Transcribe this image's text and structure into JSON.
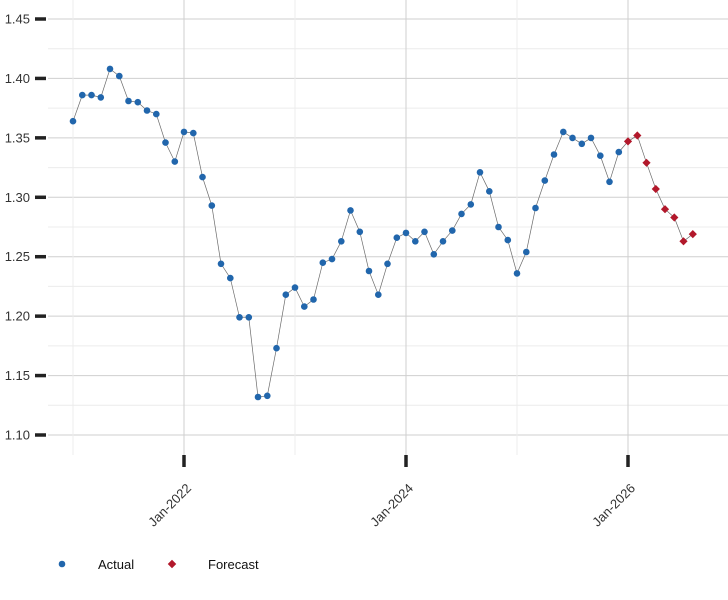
{
  "chart_data": {
    "type": "line",
    "title": "",
    "xlabel": "",
    "ylabel": "",
    "xlim": [
      "2021-01-01",
      "2026-10-01"
    ],
    "ylim": [
      1.1,
      1.45
    ],
    "y_ticks": [
      "1.10",
      "1.15",
      "1.20",
      "1.25",
      "1.30",
      "1.35",
      "1.40",
      "1.45"
    ],
    "x_ticks": [
      {
        "date": "2022-01-01",
        "label": "Jan-2022"
      },
      {
        "date": "2024-01-01",
        "label": "Jan-2024"
      },
      {
        "date": "2026-01-01",
        "label": "Jan-2026"
      }
    ],
    "grid": true,
    "legend_position": "bottom-left",
    "series": [
      {
        "name": "Actual",
        "color": "#2166ac",
        "marker": "circle",
        "points": [
          [
            "2021-01-01",
            1.364
          ],
          [
            "2021-02-01",
            1.386
          ],
          [
            "2021-03-01",
            1.386
          ],
          [
            "2021-04-01",
            1.384
          ],
          [
            "2021-05-01",
            1.408
          ],
          [
            "2021-06-01",
            1.402
          ],
          [
            "2021-07-01",
            1.381
          ],
          [
            "2021-08-01",
            1.38
          ],
          [
            "2021-09-01",
            1.373
          ],
          [
            "2021-10-01",
            1.37
          ],
          [
            "2021-11-01",
            1.346
          ],
          [
            "2021-12-01",
            1.33
          ],
          [
            "2022-01-01",
            1.355
          ],
          [
            "2022-02-01",
            1.354
          ],
          [
            "2022-03-01",
            1.317
          ],
          [
            "2022-04-01",
            1.293
          ],
          [
            "2022-05-01",
            1.244
          ],
          [
            "2022-06-01",
            1.232
          ],
          [
            "2022-07-01",
            1.199
          ],
          [
            "2022-08-01",
            1.199
          ],
          [
            "2022-09-01",
            1.132
          ],
          [
            "2022-10-01",
            1.133
          ],
          [
            "2022-11-01",
            1.173
          ],
          [
            "2022-12-01",
            1.218
          ],
          [
            "2023-01-01",
            1.224
          ],
          [
            "2023-02-01",
            1.208
          ],
          [
            "2023-03-01",
            1.214
          ],
          [
            "2023-04-01",
            1.245
          ],
          [
            "2023-05-01",
            1.248
          ],
          [
            "2023-06-01",
            1.263
          ],
          [
            "2023-07-01",
            1.289
          ],
          [
            "2023-08-01",
            1.271
          ],
          [
            "2023-09-01",
            1.238
          ],
          [
            "2023-10-01",
            1.218
          ],
          [
            "2023-11-01",
            1.244
          ],
          [
            "2023-12-01",
            1.266
          ],
          [
            "2024-01-01",
            1.27
          ],
          [
            "2024-02-01",
            1.263
          ],
          [
            "2024-03-01",
            1.271
          ],
          [
            "2024-04-01",
            1.252
          ],
          [
            "2024-05-01",
            1.263
          ],
          [
            "2024-06-01",
            1.272
          ],
          [
            "2024-07-01",
            1.286
          ],
          [
            "2024-08-01",
            1.294
          ],
          [
            "2024-09-01",
            1.321
          ],
          [
            "2024-10-01",
            1.305
          ],
          [
            "2024-11-01",
            1.275
          ],
          [
            "2024-12-01",
            1.264
          ],
          [
            "2025-01-01",
            1.236
          ],
          [
            "2025-02-01",
            1.254
          ],
          [
            "2025-03-01",
            1.291
          ],
          [
            "2025-04-01",
            1.314
          ],
          [
            "2025-05-01",
            1.336
          ],
          [
            "2025-06-01",
            1.355
          ],
          [
            "2025-07-01",
            1.35
          ],
          [
            "2025-08-01",
            1.345
          ],
          [
            "2025-09-01",
            1.35
          ],
          [
            "2025-10-01",
            1.335
          ],
          [
            "2025-11-01",
            1.313
          ],
          [
            "2025-12-01",
            1.338
          ]
        ]
      },
      {
        "name": "Forecast",
        "color": "#b2182b",
        "marker": "diamond",
        "points": [
          [
            "2026-01-01",
            1.347
          ],
          [
            "2026-02-01",
            1.352
          ],
          [
            "2026-03-01",
            1.329
          ],
          [
            "2026-04-01",
            1.307
          ],
          [
            "2026-05-01",
            1.29
          ],
          [
            "2026-06-01",
            1.283
          ],
          [
            "2026-07-01",
            1.263
          ],
          [
            "2026-08-01",
            1.269
          ]
        ]
      }
    ]
  }
}
